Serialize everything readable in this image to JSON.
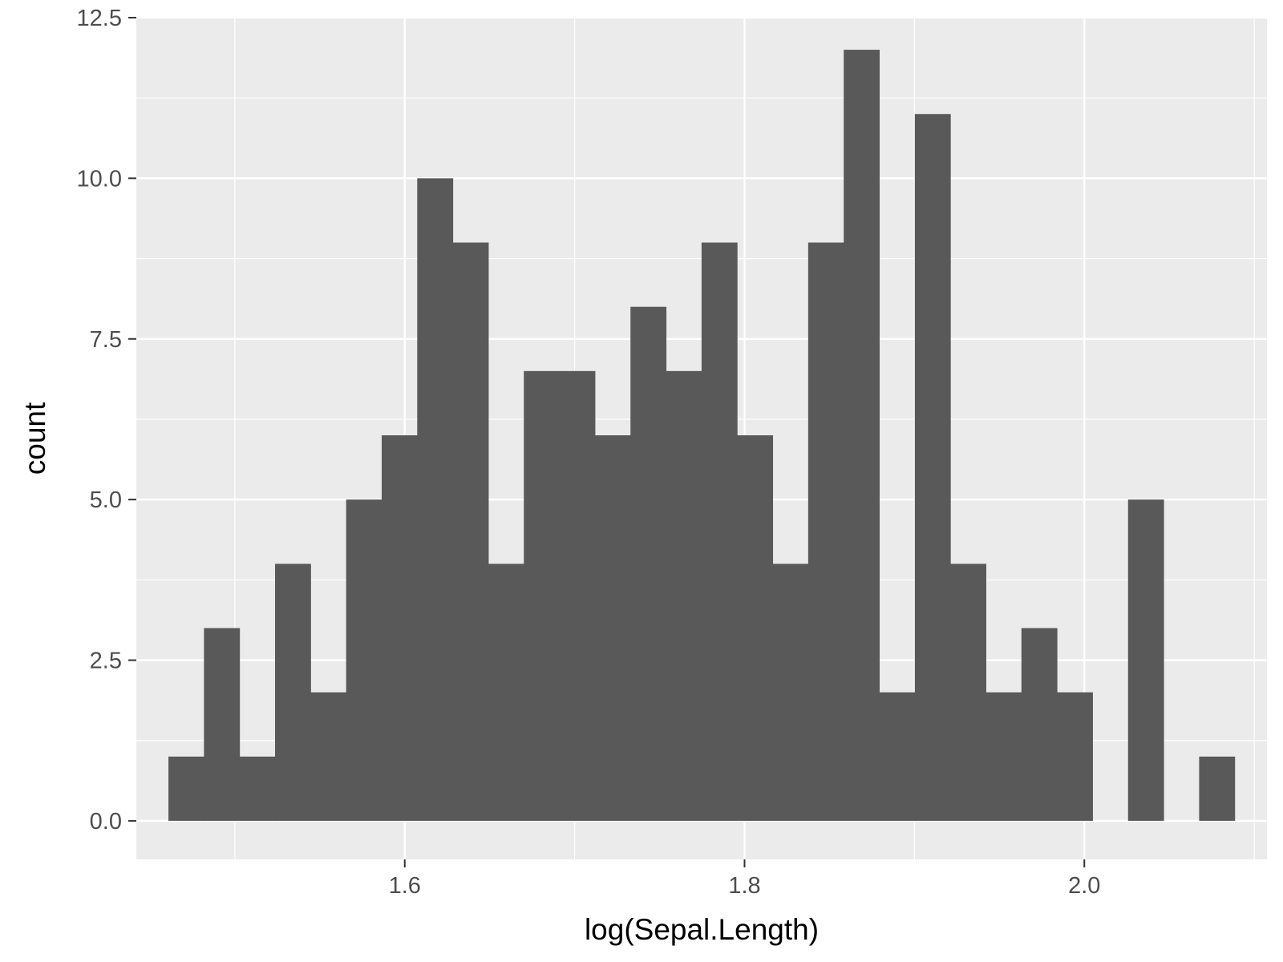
{
  "chart_data": {
    "type": "bar",
    "title": "",
    "xlabel": "log(Sepal.Length)",
    "ylabel": "count",
    "bin_start": 1.4609,
    "bin_width": 0.02092,
    "counts": [
      1,
      3,
      1,
      4,
      2,
      5,
      6,
      10,
      9,
      4,
      7,
      7,
      6,
      8,
      7,
      9,
      6,
      4,
      9,
      12,
      2,
      11,
      4,
      2,
      3,
      2,
      0,
      5,
      0,
      1
    ],
    "xlim": [
      1.442,
      2.1075
    ],
    "ylim": [
      -0.6,
      12.5
    ],
    "x_ticks": [
      {
        "value": 1.6,
        "label": "1.6"
      },
      {
        "value": 1.8,
        "label": "1.8"
      },
      {
        "value": 2.0,
        "label": "2.0"
      }
    ],
    "x_minor_ticks": [
      1.5,
      1.7,
      1.9,
      2.1
    ],
    "y_ticks": [
      {
        "value": 0,
        "label": "0.0"
      },
      {
        "value": 2.5,
        "label": "2.5"
      },
      {
        "value": 5,
        "label": "5.0"
      },
      {
        "value": 7.5,
        "label": "7.5"
      },
      {
        "value": 10,
        "label": "10.0"
      },
      {
        "value": 12.5,
        "label": "12.5"
      }
    ],
    "y_minor_ticks": [
      1.25,
      3.75,
      6.25,
      8.75,
      11.25
    ],
    "grid": true,
    "colors": {
      "bar": "#595959",
      "panel": "#ebebeb",
      "grid": "#ffffff",
      "tick": "#333333"
    }
  }
}
